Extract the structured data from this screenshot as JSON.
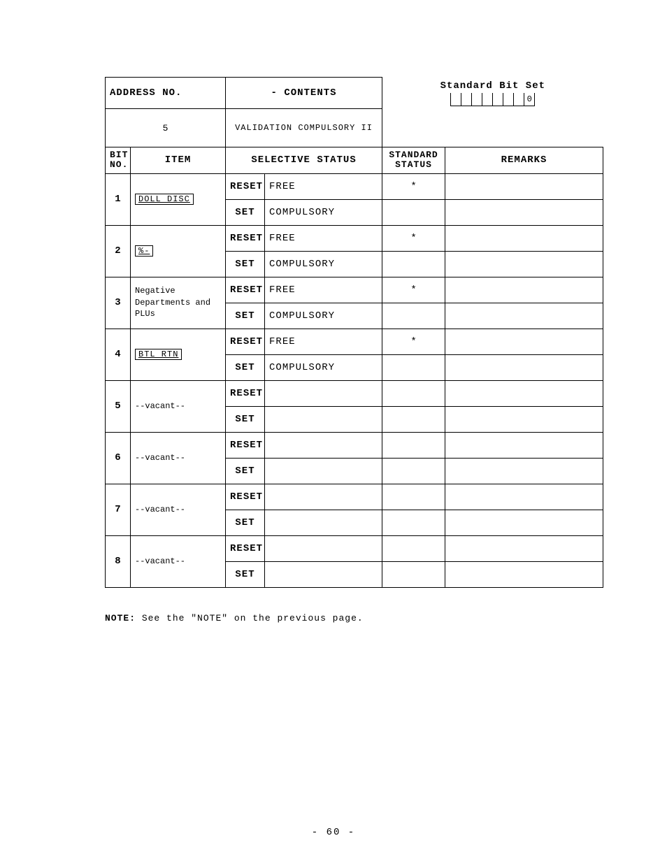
{
  "header": {
    "address_no_label": "ADDRESS NO.",
    "contents_label": "- CONTENTS",
    "address_no": "5",
    "contents": "VALIDATION COMPULSORY  II",
    "std_bit_set_label": "Standard Bit Set",
    "bit_values": [
      "",
      "",
      "",
      "",
      "",
      "",
      "",
      "0"
    ]
  },
  "columns": {
    "bitno": "BIT NO.",
    "item": "ITEM",
    "selective_status": "SELECTIVE STATUS",
    "standard_status": "STANDARD STATUS",
    "remarks": "REMARKS"
  },
  "row_labels": {
    "reset": "RESET",
    "set": "SET"
  },
  "rows": [
    {
      "bit": "1",
      "item_type": "key",
      "item": "DOLL DISC",
      "reset_status": "FREE",
      "set_status": "COMPULSORY",
      "std_reset": "*",
      "std_set": "",
      "rem_reset": "",
      "rem_set": ""
    },
    {
      "bit": "2",
      "item_type": "key",
      "item": "%-",
      "reset_status": "FREE",
      "set_status": "COMPULSORY",
      "std_reset": "*",
      "std_set": "",
      "rem_reset": "",
      "rem_set": ""
    },
    {
      "bit": "3",
      "item_type": "plain",
      "item": "Negative Departments and PLUs",
      "reset_status": "FREE",
      "set_status": "COMPULSORY",
      "std_reset": "*",
      "std_set": "",
      "rem_reset": "",
      "rem_set": ""
    },
    {
      "bit": "4",
      "item_type": "key",
      "item": "BTL RTN",
      "reset_status": "FREE",
      "set_status": "COMPULSORY",
      "std_reset": "*",
      "std_set": "",
      "rem_reset": "",
      "rem_set": ""
    },
    {
      "bit": "5",
      "item_type": "vacant",
      "item": "--vacant--",
      "reset_status": "",
      "set_status": "",
      "std_reset": "",
      "std_set": "",
      "rem_reset": "",
      "rem_set": ""
    },
    {
      "bit": "6",
      "item_type": "vacant",
      "item": "--vacant--",
      "reset_status": "",
      "set_status": "",
      "std_reset": "",
      "std_set": "",
      "rem_reset": "",
      "rem_set": ""
    },
    {
      "bit": "7",
      "item_type": "vacant",
      "item": "--vacant--",
      "reset_status": "",
      "set_status": "",
      "std_reset": "",
      "std_set": "",
      "rem_reset": "",
      "rem_set": ""
    },
    {
      "bit": "8",
      "item_type": "vacant",
      "item": "--vacant--",
      "reset_status": "",
      "set_status": "",
      "std_reset": "",
      "std_set": "",
      "rem_reset": "",
      "rem_set": ""
    }
  ],
  "note": {
    "label": "NOTE:",
    "text": "See the \"NOTE\" on the previous page."
  },
  "page_number": "- 60 -"
}
